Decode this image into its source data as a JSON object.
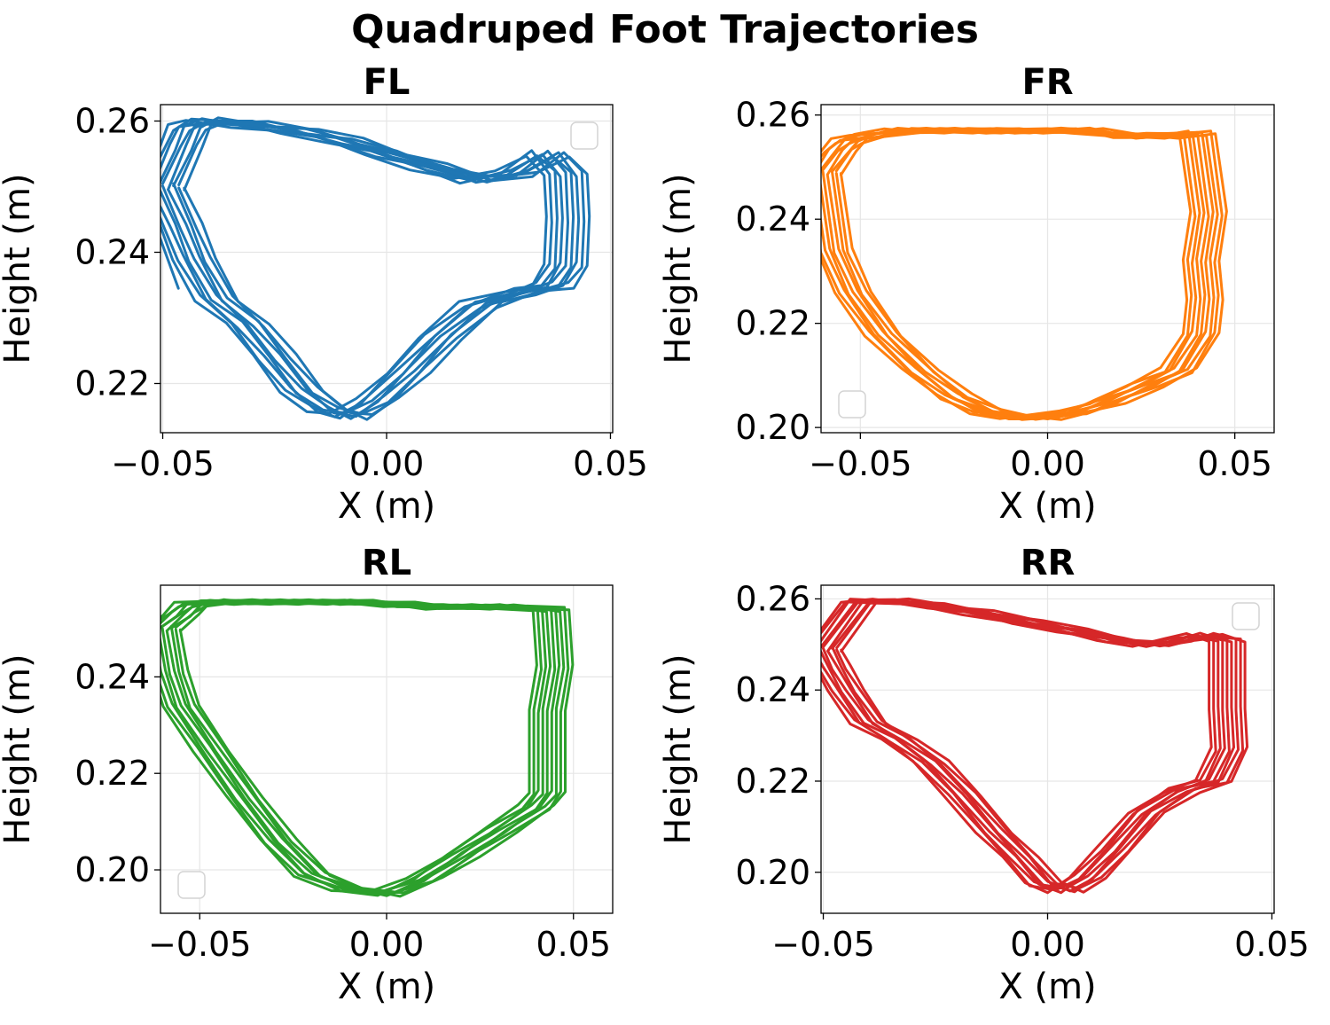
{
  "chart_data": {
    "suptitle": "Quadruped Foot Trajectories",
    "panels": [
      {
        "type": "line",
        "title": "FL",
        "xlabel": "X (m)",
        "ylabel": "Height (m)",
        "xlim": [
          -0.0505,
          0.0505
        ],
        "ylim": [
          0.2125,
          0.2625
        ],
        "xticks": [
          -0.05,
          0.0,
          0.05
        ],
        "xtick_labels": [
          "−0.05",
          "0.00",
          "0.05"
        ],
        "yticks": [
          0.22,
          0.24,
          0.26
        ],
        "ytick_labels": [
          "0.22",
          "0.24",
          "0.26"
        ],
        "grid": true,
        "legend": "top-right",
        "color": "#1f77b4",
        "cycles": 9,
        "x_shift_step": 0.0012,
        "loop": {
          "x": [
            -0.05,
            -0.046,
            -0.043,
            -0.038,
            -0.031,
            -0.025,
            -0.019,
            -0.013,
            -0.008,
            -0.002,
            0.005,
            0.012,
            0.021,
            0.031,
            0.037,
            0.04,
            0.0405,
            0.04,
            0.036,
            0.029,
            0.02,
            0.01,
            0.0,
            -0.01,
            -0.02,
            -0.03,
            -0.04,
            -0.044,
            -0.046,
            -0.05
          ],
          "y": [
            0.25,
            0.244,
            0.239,
            0.233,
            0.229,
            0.224,
            0.219,
            0.216,
            0.215,
            0.2175,
            0.222,
            0.227,
            0.232,
            0.234,
            0.235,
            0.238,
            0.245,
            0.252,
            0.255,
            0.252,
            0.251,
            0.253,
            0.255,
            0.257,
            0.2585,
            0.2595,
            0.26,
            0.259,
            0.256,
            0.25
          ]
        },
        "start": [
          -0.0465,
          0.2345
        ]
      },
      {
        "type": "line",
        "title": "FR",
        "xlabel": "X (m)",
        "ylabel": "Height (m)",
        "xlim": [
          -0.0605,
          0.0605
        ],
        "ylim": [
          0.199,
          0.262
        ],
        "xticks": [
          -0.05,
          0.0,
          0.05
        ],
        "xtick_labels": [
          "−0.05",
          "0.00",
          "0.05"
        ],
        "yticks": [
          0.2,
          0.22,
          0.24,
          0.26
        ],
        "ytick_labels": [
          "0.20",
          "0.22",
          "0.24",
          "0.26"
        ],
        "grid": true,
        "legend": "bottom-left",
        "color": "#ff7f0e",
        "cycles": 9,
        "x_shift_step": 0.0012,
        "loop": {
          "x": [
            -0.06,
            -0.057,
            -0.052,
            -0.044,
            -0.034,
            -0.025,
            -0.016,
            -0.008,
            0.0,
            0.008,
            0.016,
            0.026,
            0.035,
            0.041,
            0.042,
            0.041,
            0.043,
            0.04,
            0.03,
            0.02,
            0.01,
            0.0,
            -0.01,
            -0.02,
            -0.03,
            -0.04,
            -0.048,
            -0.053,
            -0.056,
            -0.06
          ],
          "y": [
            0.249,
            0.234,
            0.226,
            0.218,
            0.211,
            0.206,
            0.203,
            0.202,
            0.202,
            0.203,
            0.205,
            0.208,
            0.211,
            0.218,
            0.225,
            0.232,
            0.241,
            0.2565,
            0.256,
            0.256,
            0.257,
            0.257,
            0.257,
            0.257,
            0.257,
            0.257,
            0.256,
            0.255,
            0.253,
            0.249
          ]
        }
      },
      {
        "type": "line",
        "title": "RL",
        "xlabel": "X (m)",
        "ylabel": "Height (m)",
        "xlim": [
          -0.0605,
          0.0605
        ],
        "ylim": [
          0.191,
          0.259
        ],
        "xticks": [
          -0.05,
          0.0,
          0.05
        ],
        "xtick_labels": [
          "−0.05",
          "0.00",
          "0.05"
        ],
        "yticks": [
          0.2,
          0.22,
          0.24
        ],
        "ytick_labels": [
          "0.20",
          "0.22",
          "0.24"
        ],
        "grid": true,
        "legend": "bottom-left",
        "color": "#2ca02c",
        "cycles": 9,
        "x_shift_step": 0.0012,
        "loop": {
          "x": [
            -0.06,
            -0.058,
            -0.055,
            -0.047,
            -0.038,
            -0.029,
            -0.02,
            -0.01,
            0.0,
            0.01,
            0.02,
            0.03,
            0.04,
            0.043,
            0.043,
            0.043,
            0.045,
            0.044,
            0.034,
            0.024,
            0.014,
            0.004,
            -0.006,
            -0.016,
            -0.026,
            -0.036,
            -0.046,
            -0.052,
            -0.055,
            -0.06
          ],
          "y": [
            0.25,
            0.241,
            0.234,
            0.225,
            0.215,
            0.206,
            0.199,
            0.196,
            0.195,
            0.198,
            0.203,
            0.208,
            0.213,
            0.216,
            0.224,
            0.233,
            0.242,
            0.254,
            0.2545,
            0.2545,
            0.2545,
            0.255,
            0.2555,
            0.2555,
            0.2555,
            0.2555,
            0.2555,
            0.255,
            0.253,
            0.25
          ]
        }
      },
      {
        "type": "line",
        "title": "RR",
        "xlabel": "X (m)",
        "ylabel": "Height (m)",
        "xlim": [
          -0.0505,
          0.0505
        ],
        "ylim": [
          0.191,
          0.263
        ],
        "xticks": [
          -0.05,
          0.0,
          0.05
        ],
        "xtick_labels": [
          "−0.05",
          "0.00",
          "0.05"
        ],
        "yticks": [
          0.2,
          0.22,
          0.24,
          0.26
        ],
        "ytick_labels": [
          "0.20",
          "0.22",
          "0.24",
          "0.26"
        ],
        "grid": true,
        "legend": "top-right",
        "color": "#d62728",
        "cycles": 9,
        "x_shift_step": 0.001,
        "loop": {
          "x": [
            -0.05,
            -0.048,
            -0.045,
            -0.04,
            -0.033,
            -0.026,
            -0.019,
            -0.012,
            -0.006,
            -0.001,
            0.004,
            0.009,
            0.015,
            0.022,
            0.03,
            0.037,
            0.0405,
            0.04,
            0.04,
            0.035,
            0.03,
            0.023,
            0.015,
            0.005,
            -0.005,
            -0.015,
            -0.025,
            -0.035,
            -0.042,
            -0.05
          ],
          "y": [
            0.249,
            0.245,
            0.24,
            0.233,
            0.229,
            0.224,
            0.217,
            0.209,
            0.203,
            0.1975,
            0.196,
            0.199,
            0.205,
            0.213,
            0.218,
            0.22,
            0.227,
            0.236,
            0.251,
            0.252,
            0.251,
            0.25,
            0.251,
            0.253,
            0.255,
            0.257,
            0.2585,
            0.2595,
            0.2595,
            0.249
          ]
        }
      }
    ]
  }
}
